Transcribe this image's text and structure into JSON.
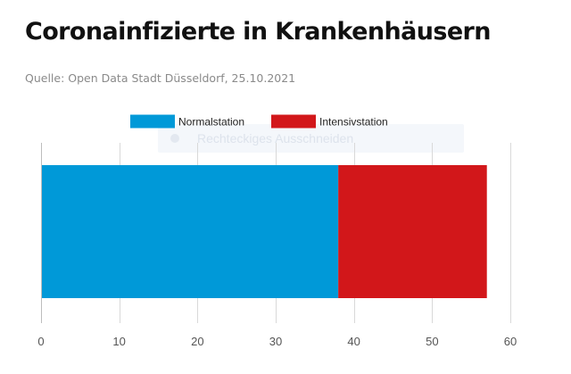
{
  "header": {
    "title": "Coronainfizierte in Krankenhäusern",
    "source": "Quelle: Open Data Stadt Düsseldorf, 25.10.2021"
  },
  "overlay": {
    "text": "Rechteckiges Ausschneiden"
  },
  "chart_data": {
    "type": "bar",
    "orientation": "horizontal",
    "stacked": true,
    "categories": [
      ""
    ],
    "series": [
      {
        "name": "Normalstation",
        "values": [
          38
        ],
        "color": "#0099d8"
      },
      {
        "name": "Intensivstation",
        "values": [
          19
        ],
        "color": "#d2171a"
      }
    ],
    "xticks": [
      0,
      10,
      20,
      30,
      40,
      50,
      60
    ],
    "xlim": [
      0,
      60
    ],
    "grid": "vertical",
    "legend": "top-center",
    "title": "",
    "xlabel": "",
    "ylabel": ""
  }
}
